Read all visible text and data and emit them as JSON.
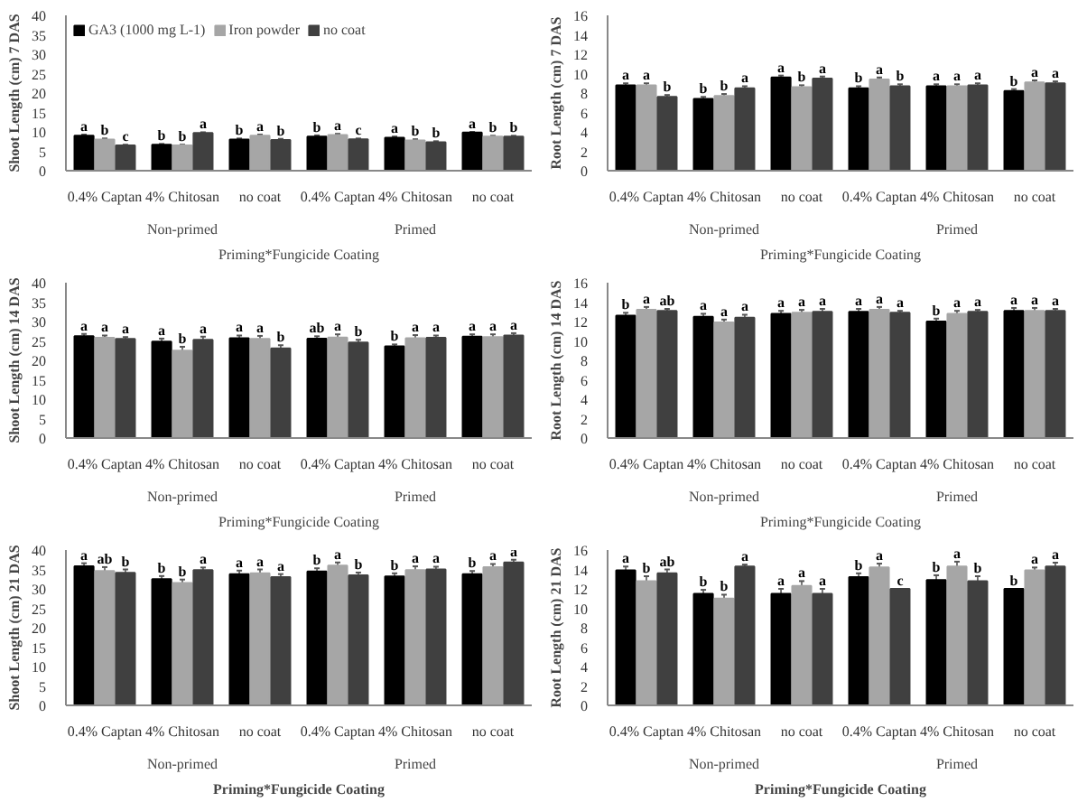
{
  "chart_data": [
    {
      "type": "bar",
      "ylabel": "Shoot Length (cm) 7 DAS",
      "xlabel": "Priming*Fungicide Coating",
      "categories": [
        "0.4% Captan",
        "4% Chitosan",
        "no coat",
        "0.4% Captan",
        "4% Chitosan",
        "no coat"
      ],
      "annotations": [
        "Non-primed",
        "Primed"
      ],
      "ylim": [
        0,
        40
      ],
      "yticks": [
        0,
        5,
        10,
        15,
        20,
        25,
        30,
        35,
        40
      ],
      "grid": false,
      "legend": "top left",
      "series": [
        {
          "name": "GA3 (1000 mg L-1)",
          "color": "#000000",
          "values": [
            9.0,
            6.7,
            8.0,
            8.8,
            8.5,
            9.8
          ],
          "errors": [
            0.3,
            0.2,
            0.3,
            0.3,
            0.3,
            0.2
          ],
          "value_labels": [
            "a",
            "b",
            "b",
            "b",
            "a",
            "a"
          ]
        },
        {
          "name": "Iron powder",
          "color": "#a6a6a6",
          "values": [
            8.0,
            6.5,
            9.0,
            9.2,
            7.8,
            8.8
          ],
          "errors": [
            0.3,
            0.2,
            0.3,
            0.3,
            0.3,
            0.2
          ],
          "value_labels": [
            "b",
            "b",
            "a",
            "a",
            "b",
            "b"
          ]
        },
        {
          "name": "no coat",
          "color": "#404040",
          "values": [
            6.5,
            9.7,
            7.9,
            8.1,
            7.3,
            8.8
          ],
          "errors": [
            0.2,
            0.2,
            0.3,
            0.2,
            0.3,
            0.2
          ],
          "value_labels": [
            "c",
            "a",
            "b",
            "c",
            "b",
            "b"
          ]
        }
      ]
    },
    {
      "type": "bar",
      "ylabel": "Root Length (cm) 7 DAS",
      "xlabel": "Priming*Fungicide Coating",
      "categories": [
        "0.4% Captan",
        "4% Chitosan",
        "no coat",
        "0.4% Captan",
        "4% Chitosan",
        "no coat"
      ],
      "annotations": [
        "Non-primed",
        "Primed"
      ],
      "ylim": [
        0,
        16
      ],
      "yticks": [
        0,
        2,
        4,
        6,
        8,
        10,
        12,
        14,
        16
      ],
      "grid": false,
      "series": [
        {
          "color": "#000000",
          "values": [
            8.8,
            7.4,
            9.6,
            8.5,
            8.7,
            8.2
          ],
          "errors": [
            0.2,
            0.2,
            0.2,
            0.2,
            0.2,
            0.2
          ],
          "value_labels": [
            "a",
            "b",
            "a",
            "b",
            "a",
            "b"
          ]
        },
        {
          "color": "#a6a6a6",
          "values": [
            8.8,
            7.7,
            8.6,
            9.4,
            8.7,
            9.1
          ],
          "errors": [
            0.2,
            0.2,
            0.2,
            0.2,
            0.2,
            0.2
          ],
          "value_labels": [
            "a",
            "b",
            "b",
            "a",
            "a",
            "a"
          ]
        },
        {
          "color": "#404040",
          "values": [
            7.6,
            8.5,
            9.5,
            8.7,
            8.8,
            9.0
          ],
          "errors": [
            0.2,
            0.2,
            0.2,
            0.2,
            0.2,
            0.2
          ],
          "value_labels": [
            "b",
            "a",
            "a",
            "b",
            "a",
            "a"
          ]
        }
      ]
    },
    {
      "type": "bar",
      "ylabel": "Shoot Length (cm) 14 DAS",
      "xlabel": "Priming*Fungicide Coating",
      "categories": [
        "0.4% Captan",
        "4% Chitosan",
        "no coat",
        "0.4% Captan",
        "4% Chitosan",
        "no coat"
      ],
      "annotations": [
        "Non-primed",
        "Primed"
      ],
      "ylim": [
        0,
        40
      ],
      "yticks": [
        0,
        5,
        10,
        15,
        20,
        25,
        30,
        35,
        40
      ],
      "grid": false,
      "series": [
        {
          "color": "#000000",
          "values": [
            26.2,
            24.8,
            25.7,
            25.6,
            23.6,
            26.1
          ],
          "errors": [
            0.6,
            0.8,
            0.7,
            0.6,
            0.5,
            0.6
          ],
          "value_labels": [
            "a",
            "a",
            "a",
            "ab",
            "b",
            "a"
          ]
        },
        {
          "color": "#a6a6a6",
          "values": [
            25.8,
            22.5,
            25.5,
            25.9,
            25.7,
            26.0
          ],
          "errors": [
            0.6,
            1.0,
            0.8,
            0.8,
            0.8,
            0.7
          ],
          "value_labels": [
            "a",
            "b",
            "a",
            "a",
            "a",
            "a"
          ]
        },
        {
          "color": "#404040",
          "values": [
            25.5,
            25.3,
            23.1,
            24.6,
            25.8,
            26.4
          ],
          "errors": [
            0.5,
            0.8,
            0.8,
            0.7,
            0.6,
            0.6
          ],
          "value_labels": [
            "a",
            "a",
            "b",
            "b",
            "a",
            "a"
          ]
        }
      ]
    },
    {
      "type": "bar",
      "ylabel": "Root Length (cm) 14 DAS",
      "xlabel": "Priming*Fungicide Coating",
      "categories": [
        "0.4% Captan",
        "4% Chitosan",
        "no coat",
        "0.4% Captan",
        "4% Chitosan",
        "no coat"
      ],
      "annotations": [
        "Non-primed",
        "Primed"
      ],
      "ylim": [
        0,
        16
      ],
      "yticks": [
        0,
        2,
        4,
        6,
        8,
        10,
        12,
        14,
        16
      ],
      "grid": false,
      "series": [
        {
          "color": "#000000",
          "values": [
            12.6,
            12.5,
            12.8,
            13.0,
            12.0,
            13.1
          ],
          "errors": [
            0.3,
            0.3,
            0.3,
            0.3,
            0.3,
            0.3
          ],
          "value_labels": [
            "b",
            "a",
            "a",
            "a",
            "b",
            "a"
          ]
        },
        {
          "color": "#a6a6a6",
          "values": [
            13.2,
            11.9,
            12.9,
            13.2,
            12.8,
            13.1
          ],
          "errors": [
            0.3,
            0.3,
            0.3,
            0.3,
            0.3,
            0.3
          ],
          "value_labels": [
            "a",
            "a",
            "a",
            "a",
            "a",
            "a"
          ]
        },
        {
          "color": "#404040",
          "values": [
            13.1,
            12.4,
            13.0,
            12.9,
            13.0,
            13.1
          ],
          "errors": [
            0.2,
            0.3,
            0.3,
            0.2,
            0.2,
            0.2
          ],
          "value_labels": [
            "ab",
            "a",
            "a",
            "a",
            "a",
            "a"
          ]
        }
      ]
    },
    {
      "type": "bar",
      "ylabel": "Shoot Length (cm) 21 DAS",
      "xlabel": "Priming*Fungicide Coating",
      "categories": [
        "0.4% Captan",
        "4% Chitosan",
        "no coat",
        "0.4% Captan",
        "4% Chitosan",
        "no coat"
      ],
      "annotations": [
        "Non-primed",
        "Primed"
      ],
      "ylim": [
        0,
        40
      ],
      "yticks": [
        0,
        5,
        10,
        15,
        20,
        25,
        30,
        35,
        40
      ],
      "grid": false,
      "series": [
        {
          "color": "#000000",
          "values": [
            35.8,
            32.5,
            33.8,
            34.5,
            33.2,
            33.8
          ],
          "errors": [
            0.8,
            0.8,
            0.9,
            0.8,
            0.8,
            0.8
          ],
          "value_labels": [
            "a",
            "b",
            "a",
            "b",
            "b",
            "b"
          ]
        },
        {
          "color": "#a6a6a6",
          "values": [
            34.6,
            31.5,
            34.0,
            36.0,
            34.8,
            35.6
          ],
          "errors": [
            1.0,
            0.9,
            1.0,
            0.8,
            1.0,
            0.8
          ],
          "value_labels": [
            "ab",
            "b",
            "a",
            "a",
            "a",
            "a"
          ]
        },
        {
          "color": "#404040",
          "values": [
            34.1,
            34.8,
            33.0,
            33.5,
            35.0,
            36.8
          ],
          "errors": [
            0.9,
            0.7,
            0.8,
            0.7,
            0.7,
            0.7
          ],
          "value_labels": [
            "b",
            "a",
            "a",
            "b",
            "a",
            "a"
          ]
        }
      ]
    },
    {
      "type": "bar",
      "ylabel": "Root Length (cm) 21 DAS",
      "xlabel": "Priming*Fungicide Coating",
      "categories": [
        "0.4% Captan",
        "4% Chitosan",
        "no coat",
        "0.4% Captan",
        "4% Chitosan",
        "no coat"
      ],
      "annotations": [
        "Non-primed",
        "Primed"
      ],
      "ylim": [
        0,
        16
      ],
      "yticks": [
        0,
        2,
        4,
        6,
        8,
        10,
        12,
        14,
        16
      ],
      "grid": false,
      "series": [
        {
          "color": "#000000",
          "values": [
            13.9,
            11.5,
            11.5,
            13.2,
            12.9,
            12.0
          ],
          "errors": [
            0.4,
            0.4,
            0.5,
            0.4,
            0.5,
            null
          ],
          "value_labels": [
            "a",
            "b",
            "a",
            "b",
            "b",
            "b"
          ]
        },
        {
          "color": "#a6a6a6",
          "values": [
            12.8,
            11.0,
            12.3,
            14.2,
            14.3,
            13.9
          ],
          "errors": [
            0.5,
            0.4,
            0.5,
            0.4,
            0.5,
            0.3
          ],
          "value_labels": [
            "b",
            "b",
            "a",
            "a",
            "a",
            "a"
          ]
        },
        {
          "color": "#404040",
          "values": [
            13.6,
            14.3,
            11.5,
            12.0,
            12.8,
            14.3
          ],
          "errors": [
            0.4,
            0.2,
            0.5,
            null,
            0.5,
            0.4
          ],
          "value_labels": [
            "ab",
            "a",
            "a",
            "c",
            "b",
            "a"
          ]
        }
      ]
    }
  ]
}
